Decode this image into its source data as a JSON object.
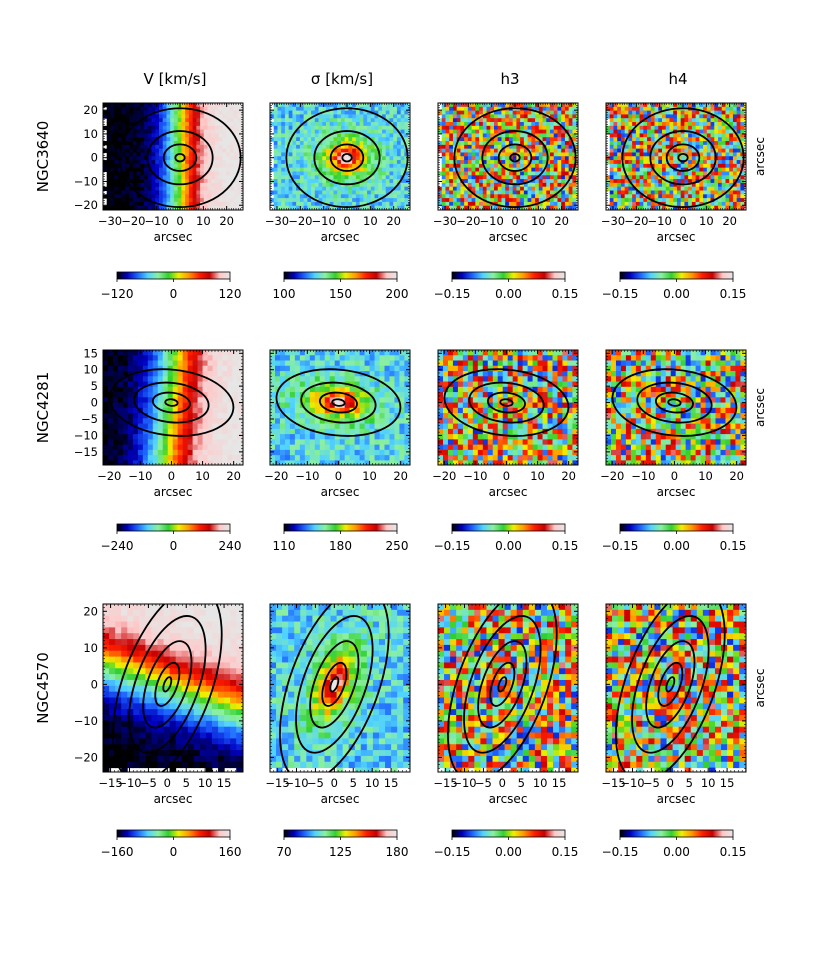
{
  "chart_data": {
    "type": "heatmap",
    "title": "",
    "column_titles": [
      "V [km/s]",
      "σ [km/s]",
      "h3",
      "h4"
    ],
    "panel_xlabel": "arcsec",
    "panel_ylabel": "arcsec",
    "rows": [
      {
        "galaxy": "NGC3640",
        "xlim": [
          -33,
          27
        ],
        "ylim": [
          -22,
          23
        ],
        "xticks": [
          -30,
          -20,
          -10,
          0,
          10,
          20
        ],
        "xtick_labels": [
          "−30",
          "−20",
          "−10",
          "0",
          "10",
          "20"
        ],
        "yticks": [
          -20,
          -10,
          0,
          10,
          20
        ],
        "ytick_labels": [
          "−20",
          "−10",
          "0",
          "10",
          "20"
        ],
        "contour_axis_ratio": 0.8,
        "contour_pa_deg": 0,
        "contour_radii": [
          2,
          7,
          14,
          26
        ],
        "velocity_field_angle_deg": 0,
        "colorbars": [
          {
            "min": -120,
            "max": 120,
            "ticks": [
              "−120",
              "0",
              "120"
            ]
          },
          {
            "min": 100,
            "max": 200,
            "ticks": [
              "100",
              "150",
              "200"
            ]
          },
          {
            "min": -0.15,
            "max": 0.15,
            "ticks": [
              "−0.15",
              "0.00",
              "0.15"
            ]
          },
          {
            "min": -0.15,
            "max": 0.15,
            "ticks": [
              "−0.15",
              "0.00",
              "0.15"
            ]
          }
        ]
      },
      {
        "galaxy": "NGC4281",
        "xlim": [
          -22,
          23
        ],
        "ylim": [
          -19,
          16
        ],
        "xticks": [
          -20,
          -10,
          0,
          10,
          20
        ],
        "xtick_labels": [
          "−20",
          "−10",
          "0",
          "10",
          "20"
        ],
        "yticks": [
          -15,
          -10,
          -5,
          0,
          5,
          10,
          15
        ],
        "ytick_labels": [
          "−15",
          "−10",
          "−5",
          "0",
          "5",
          "10",
          "15"
        ],
        "contour_axis_ratio": 0.5,
        "contour_pa_deg": -6,
        "contour_radii": [
          2,
          6,
          12,
          20
        ],
        "velocity_field_angle_deg": -6,
        "colorbars": [
          {
            "min": -240,
            "max": 240,
            "ticks": [
              "−240",
              "0",
              "240"
            ]
          },
          {
            "min": 110,
            "max": 250,
            "ticks": [
              "110",
              "180",
              "250"
            ]
          },
          {
            "min": -0.15,
            "max": 0.15,
            "ticks": [
              "−0.15",
              "0.00",
              "0.15"
            ]
          },
          {
            "min": -0.15,
            "max": 0.15,
            "ticks": [
              "−0.15",
              "0.00",
              "0.15"
            ]
          }
        ]
      },
      {
        "galaxy": "NGC4570",
        "xlim": [
          -17,
          20
        ],
        "ylim": [
          -24,
          22
        ],
        "xticks": [
          -15,
          -10,
          -5,
          0,
          5,
          10,
          15
        ],
        "xtick_labels": [
          "−15",
          "−10",
          "−5",
          "0",
          "5",
          "10",
          "15"
        ],
        "yticks": [
          -20,
          -10,
          0,
          10,
          20
        ],
        "ytick_labels": [
          "−20",
          "−10",
          "0",
          "10",
          "20"
        ],
        "contour_axis_ratio": 0.45,
        "contour_pa_deg": 70,
        "contour_radii": [
          2,
          6,
          12,
          19,
          27
        ],
        "velocity_field_angle_deg": 70,
        "colorbars": [
          {
            "min": -160,
            "max": 160,
            "ticks": [
              "−160",
              "0",
              "160"
            ]
          },
          {
            "min": 70,
            "max": 180,
            "ticks": [
              "70",
              "125",
              "180"
            ]
          },
          {
            "min": -0.15,
            "max": 0.15,
            "ticks": [
              "−0.15",
              "0.00",
              "0.15"
            ]
          },
          {
            "min": -0.15,
            "max": 0.15,
            "ticks": [
              "−0.15",
              "0.00",
              "0.15"
            ]
          }
        ]
      }
    ],
    "colormap": [
      "#000000",
      "#0000c0",
      "#1e64ff",
      "#50d2ff",
      "#8cf0a0",
      "#30d030",
      "#f0f000",
      "#ff9600",
      "#ff1e00",
      "#c80000",
      "#ffc8c8",
      "#e6e6e6"
    ]
  }
}
